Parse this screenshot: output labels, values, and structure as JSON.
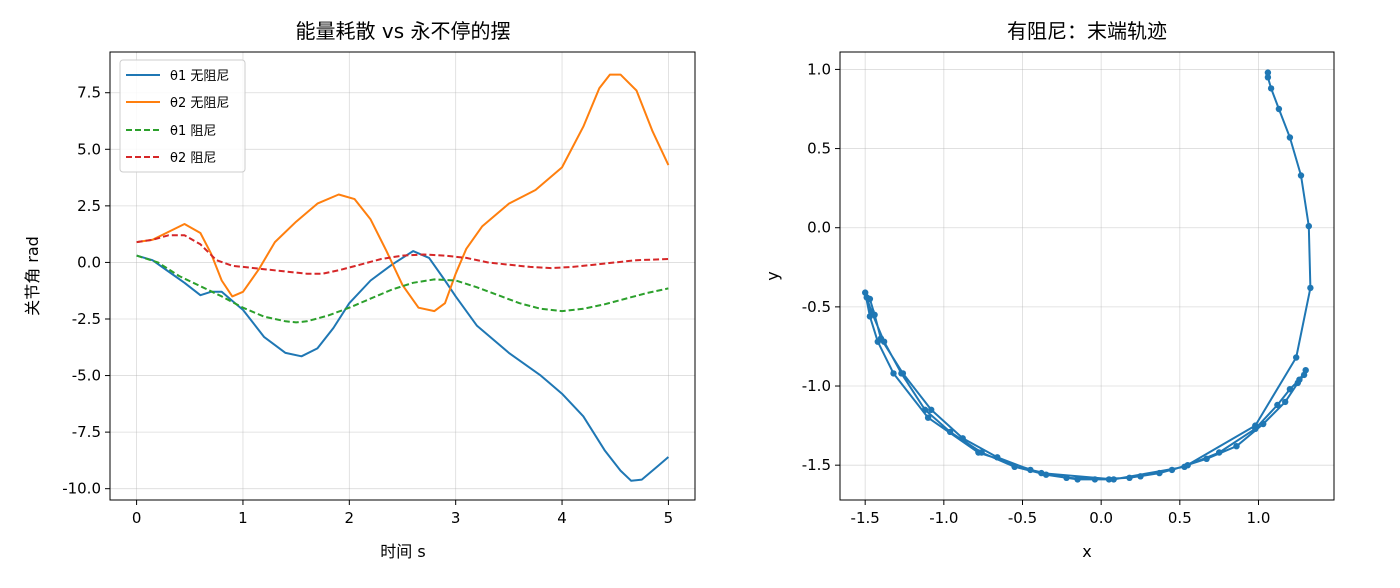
{
  "chart_data": [
    {
      "type": "line",
      "title": "能量耗散 vs 永不停的摆",
      "xlabel": "时间 s",
      "ylabel": "关节角 rad",
      "xlim": [
        -0.25,
        5.25
      ],
      "ylim": [
        -10.5,
        9.3
      ],
      "xticks": [
        0,
        1,
        2,
        3,
        4,
        5
      ],
      "xtick_labels": [
        "0",
        "1",
        "2",
        "3",
        "4",
        "5"
      ],
      "yticks": [
        -10.0,
        -7.5,
        -5.0,
        -2.5,
        0.0,
        2.5,
        5.0,
        7.5
      ],
      "ytick_labels": [
        "-10.0",
        "-7.5",
        "-5.0",
        "-2.5",
        "0.0",
        "2.5",
        "5.0",
        "7.5"
      ],
      "grid": true,
      "legend": "top-left",
      "series": [
        {
          "name": "θ1 无阻尼",
          "color": "#1f77b4",
          "dash": "solid",
          "x": [
            0,
            0.15,
            0.3,
            0.45,
            0.6,
            0.7,
            0.8,
            0.9,
            1.0,
            1.2,
            1.4,
            1.55,
            1.7,
            1.85,
            2.0,
            2.2,
            2.4,
            2.6,
            2.75,
            2.9,
            3.0,
            3.2,
            3.5,
            3.8,
            4.0,
            4.2,
            4.4,
            4.55,
            4.65,
            4.75,
            4.9,
            5.0
          ],
          "y": [
            0.3,
            0.1,
            -0.4,
            -0.9,
            -1.45,
            -1.3,
            -1.3,
            -1.7,
            -2.1,
            -3.3,
            -4.0,
            -4.15,
            -3.8,
            -2.9,
            -1.8,
            -0.8,
            -0.1,
            0.5,
            0.2,
            -0.8,
            -1.5,
            -2.8,
            -4.0,
            -5.0,
            -5.8,
            -6.8,
            -8.3,
            -9.2,
            -9.65,
            -9.6,
            -9.0,
            -8.6
          ]
        },
        {
          "name": "θ2 无阻尼",
          "color": "#ff7f0e",
          "dash": "solid",
          "x": [
            0,
            0.15,
            0.3,
            0.45,
            0.6,
            0.7,
            0.8,
            0.9,
            1.0,
            1.15,
            1.3,
            1.5,
            1.7,
            1.9,
            2.05,
            2.2,
            2.35,
            2.5,
            2.65,
            2.8,
            2.9,
            3.0,
            3.1,
            3.25,
            3.5,
            3.75,
            4.0,
            4.2,
            4.35,
            4.45,
            4.55,
            4.7,
            4.85,
            5.0
          ],
          "y": [
            0.9,
            1.0,
            1.35,
            1.7,
            1.3,
            0.4,
            -0.8,
            -1.5,
            -1.3,
            -0.3,
            0.9,
            1.8,
            2.6,
            3.0,
            2.8,
            1.9,
            0.5,
            -1.0,
            -2.0,
            -2.15,
            -1.8,
            -0.5,
            0.6,
            1.6,
            2.6,
            3.2,
            4.2,
            6.0,
            7.7,
            8.3,
            8.3,
            7.6,
            5.8,
            4.3
          ]
        },
        {
          "name": "θ1 阻尼",
          "color": "#2ca02c",
          "dash": "dashed",
          "x": [
            0,
            0.2,
            0.4,
            0.6,
            0.8,
            1.0,
            1.2,
            1.4,
            1.5,
            1.6,
            1.8,
            2.0,
            2.2,
            2.4,
            2.6,
            2.8,
            3.0,
            3.2,
            3.4,
            3.6,
            3.8,
            4.0,
            4.2,
            4.4,
            4.6,
            4.8,
            5.0
          ],
          "y": [
            0.3,
            0.0,
            -0.6,
            -1.05,
            -1.5,
            -2.0,
            -2.4,
            -2.6,
            -2.65,
            -2.6,
            -2.35,
            -2.0,
            -1.6,
            -1.2,
            -0.9,
            -0.75,
            -0.8,
            -1.1,
            -1.45,
            -1.8,
            -2.05,
            -2.15,
            -2.05,
            -1.85,
            -1.6,
            -1.35,
            -1.15
          ]
        },
        {
          "name": "θ2 阻尼",
          "color": "#d62728",
          "dash": "dashed",
          "x": [
            0,
            0.15,
            0.3,
            0.45,
            0.6,
            0.75,
            0.9,
            1.0,
            1.2,
            1.4,
            1.6,
            1.75,
            1.9,
            2.1,
            2.3,
            2.5,
            2.7,
            2.9,
            3.1,
            3.3,
            3.5,
            3.7,
            3.9,
            4.1,
            4.3,
            4.5,
            4.7,
            5.0
          ],
          "y": [
            0.9,
            1.0,
            1.2,
            1.2,
            0.8,
            0.1,
            -0.15,
            -0.2,
            -0.3,
            -0.4,
            -0.5,
            -0.5,
            -0.35,
            -0.1,
            0.15,
            0.3,
            0.35,
            0.3,
            0.2,
            0.0,
            -0.1,
            -0.2,
            -0.25,
            -0.2,
            -0.1,
            0.0,
            0.1,
            0.15
          ]
        }
      ]
    },
    {
      "type": "line",
      "title": "有阻尼：末端轨迹",
      "xlabel": "x",
      "ylabel": "y",
      "xlim": [
        -1.66,
        1.48
      ],
      "ylim": [
        -1.72,
        1.11
      ],
      "xticks": [
        -1.5,
        -1.0,
        -0.5,
        0.0,
        0.5,
        1.0
      ],
      "xtick_labels": [
        "-1.5",
        "-1.0",
        "-0.5",
        "0.0",
        "0.5",
        "1.0"
      ],
      "yticks": [
        -1.5,
        -1.0,
        -0.5,
        0.0,
        0.5,
        1.0
      ],
      "ytick_labels": [
        "-1.5",
        "-1.0",
        "-0.5",
        "0.0",
        "0.5",
        "1.0"
      ],
      "grid": true,
      "markers": true,
      "series": [
        {
          "color": "#1f77b4",
          "x": [
            1.06,
            1.06,
            1.08,
            1.13,
            1.2,
            1.27,
            1.32,
            1.33,
            1.24,
            0.98,
            0.53,
            0.08,
            -0.38,
            -0.78,
            -1.1,
            -1.32,
            -1.42,
            -1.47,
            -1.5,
            -1.47,
            -1.44,
            -1.4,
            -1.26,
            -1.08,
            -0.88,
            -0.66,
            -0.45,
            -0.22,
            -0.04,
            0.18,
            0.37,
            0.55,
            0.75,
            0.98,
            1.12,
            1.2,
            1.26,
            1.3,
            1.29,
            1.25,
            1.17,
            1.03,
            0.86,
            0.67,
            0.45,
            0.25,
            0.05,
            -0.15,
            -0.35,
            -0.55,
            -0.76,
            -0.96,
            -1.12,
            -1.27,
            -1.38,
            -1.46,
            -1.49
          ],
          "y": [
            0.98,
            0.95,
            0.88,
            0.75,
            0.57,
            0.33,
            0.01,
            -0.38,
            -0.82,
            -1.25,
            -1.51,
            -1.59,
            -1.55,
            -1.42,
            -1.2,
            -0.92,
            -0.72,
            -0.56,
            -0.41,
            -0.45,
            -0.55,
            -0.7,
            -0.92,
            -1.15,
            -1.33,
            -1.45,
            -1.53,
            -1.58,
            -1.59,
            -1.58,
            -1.55,
            -1.5,
            -1.42,
            -1.27,
            -1.12,
            -1.02,
            -0.96,
            -0.9,
            -0.93,
            -0.98,
            -1.1,
            -1.24,
            -1.38,
            -1.46,
            -1.53,
            -1.57,
            -1.59,
            -1.59,
            -1.56,
            -1.51,
            -1.42,
            -1.29,
            -1.15,
            -0.92,
            -0.72,
            -0.53,
            -0.44
          ]
        }
      ]
    }
  ]
}
